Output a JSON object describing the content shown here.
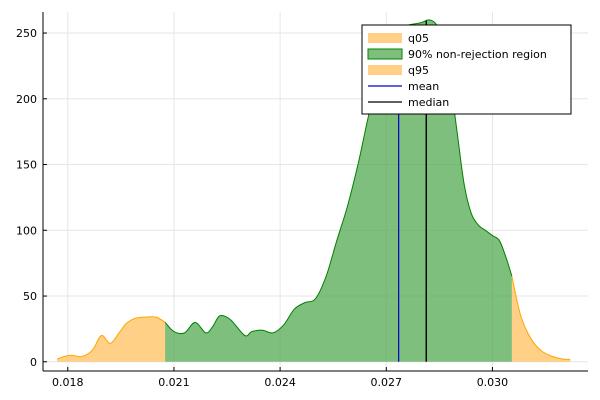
{
  "chart_data": {
    "type": "area",
    "title": "",
    "xlabel": "",
    "ylabel": "",
    "xlim": [
      0.0173,
      0.0327
    ],
    "ylim": [
      -7,
      266
    ],
    "xticks": [
      0.018,
      0.021,
      0.024,
      0.027,
      0.03
    ],
    "xtick_labels": [
      "0.018",
      "0.021",
      "0.024",
      "0.027",
      "0.030"
    ],
    "yticks": [
      0,
      50,
      100,
      150,
      200,
      250
    ],
    "ytick_labels": [
      "0",
      "50",
      "100",
      "150",
      "200",
      "250"
    ],
    "grid": true,
    "legend_position": "top-right",
    "density": {
      "x": [
        0.0177,
        0.0179,
        0.0181,
        0.0184,
        0.0187,
        0.01895,
        0.0192,
        0.01945,
        0.01965,
        0.0199,
        0.0202,
        0.0205,
        0.02075,
        0.021,
        0.0213,
        0.0216,
        0.0219,
        0.0221,
        0.0223,
        0.0226,
        0.023,
        0.0232,
        0.0235,
        0.0238,
        0.0241,
        0.0244,
        0.0247,
        0.025,
        0.0253,
        0.0256,
        0.0259,
        0.0262,
        0.0264,
        0.0266,
        0.0268,
        0.027,
        0.0272,
        0.0274,
        0.0276,
        0.0278,
        0.028,
        0.0282,
        0.0284,
        0.0286,
        0.0288,
        0.029,
        0.0292,
        0.0294,
        0.0296,
        0.0298,
        0.03,
        0.0302,
        0.0304,
        0.03055,
        0.0308,
        0.0311,
        0.0314,
        0.0317,
        0.032,
        0.0322
      ],
      "y": [
        2,
        4,
        5,
        4,
        9,
        20,
        14,
        22,
        29,
        33,
        34,
        34,
        30,
        23,
        22,
        30,
        22,
        27,
        35,
        32,
        20,
        23,
        24,
        22,
        28,
        40,
        45,
        48,
        65,
        92,
        118,
        150,
        175,
        200,
        228,
        245,
        252,
        254,
        256,
        257,
        258,
        260,
        257,
        245,
        215,
        175,
        135,
        113,
        104,
        100,
        96,
        92,
        78,
        65,
        35,
        17,
        8,
        4,
        2,
        2
      ]
    },
    "q05": 0.02075,
    "q95": 0.03055,
    "mean": 0.02735,
    "median": 0.02813,
    "series": [
      {
        "name": "q05",
        "color": "#ffc466",
        "fill_alpha": 0.8
      },
      {
        "name": "90% non-rejection region",
        "color": "#4ea64b",
        "fill_alpha": 0.72,
        "edge_color": "#008000"
      },
      {
        "name": "q95",
        "color": "#ffc466",
        "fill_alpha": 0.8
      },
      {
        "name": "mean",
        "color": "#0000cc"
      },
      {
        "name": "median",
        "color": "#000000"
      }
    ],
    "colors": {
      "tail_fill": "#ffc466",
      "tail_edge": "#ffa500",
      "region_fill": "#4ea64b",
      "region_edge": "#008000",
      "mean_line": "#0000cc",
      "median_line": "#000000",
      "grid": "#e6e6e6"
    }
  }
}
